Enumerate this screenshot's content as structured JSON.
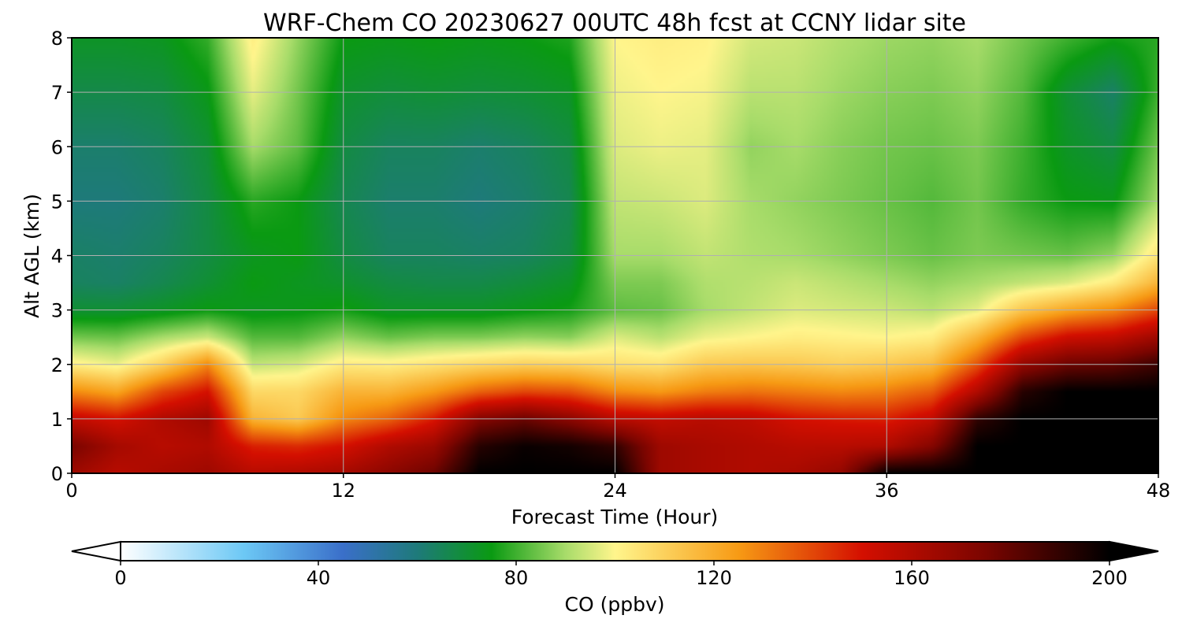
{
  "chart_data": {
    "type": "heatmap",
    "title": "WRF-Chem CO  20230627 00UTC 48h fcst at CCNY lidar site",
    "xlabel": "Forecast Time (Hour)",
    "ylabel": "Alt AGL (km)",
    "xlim": [
      0,
      48
    ],
    "ylim": [
      0,
      8
    ],
    "xticks": [
      0,
      12,
      24,
      36,
      48
    ],
    "yticks": [
      0,
      1,
      2,
      3,
      4,
      5,
      6,
      7,
      8
    ],
    "grid": true,
    "colorbar": {
      "label": "CO  (ppbv)",
      "range": [
        0,
        200
      ],
      "ticks": [
        0,
        40,
        80,
        120,
        160,
        200
      ],
      "extend": "both",
      "colors": {
        "0": "#ffffff",
        "25": "#6cc8f5",
        "45": "#3a6fc9",
        "60": "#1e7a7a",
        "75": "#0a9a12",
        "90": "#a8dc6a",
        "100": "#fff58c",
        "125": "#f79a14",
        "150": "#d40f00",
        "175": "#7a0500",
        "200": "#000000"
      }
    },
    "x_hours": [
      0,
      2,
      4,
      6,
      8,
      10,
      12,
      14,
      16,
      18,
      20,
      22,
      24,
      26,
      28,
      30,
      32,
      34,
      36,
      38,
      40,
      42,
      44,
      46,
      48
    ],
    "y_km": [
      0,
      0.5,
      1,
      1.5,
      2,
      2.5,
      3,
      3.5,
      4,
      5,
      6,
      7,
      8
    ],
    "co_ppbv": [
      [
        165,
        175,
        155,
        128,
        102,
        85,
        70,
        64,
        63,
        60,
        62,
        67,
        72
      ],
      [
        158,
        163,
        150,
        122,
        98,
        84,
        70,
        63,
        62,
        60,
        62,
        67,
        72
      ],
      [
        162,
        158,
        160,
        140,
        110,
        90,
        72,
        66,
        64,
        62,
        64,
        68,
        73
      ],
      [
        165,
        160,
        165,
        150,
        128,
        94,
        75,
        70,
        68,
        68,
        70,
        74,
        79
      ],
      [
        158,
        147,
        118,
        108,
        93,
        82,
        73,
        75,
        73,
        78,
        90,
        97,
        102
      ],
      [
        160,
        145,
        112,
        108,
        95,
        82,
        74,
        73,
        75,
        75,
        83,
        85,
        88
      ],
      [
        163,
        150,
        128,
        118,
        103,
        88,
        76,
        71,
        68,
        66,
        68,
        71,
        75
      ],
      [
        170,
        160,
        135,
        118,
        102,
        84,
        72,
        68,
        64,
        62,
        64,
        69,
        74
      ],
      [
        178,
        166,
        148,
        125,
        105,
        86,
        72,
        67,
        64,
        62,
        64,
        70,
        75
      ],
      [
        200,
        192,
        172,
        135,
        108,
        86,
        72,
        67,
        63,
        60,
        62,
        69,
        74
      ],
      [
        200,
        198,
        178,
        140,
        110,
        88,
        74,
        69,
        64,
        62,
        64,
        70,
        75
      ],
      [
        200,
        196,
        170,
        138,
        109,
        87,
        76,
        72,
        68,
        66,
        68,
        72,
        77
      ],
      [
        200,
        190,
        158,
        128,
        106,
        96,
        83,
        86,
        90,
        93,
        96,
        98,
        100
      ],
      [
        165,
        165,
        155,
        125,
        105,
        92,
        84,
        86,
        90,
        94,
        98,
        100,
        102
      ],
      [
        162,
        162,
        158,
        130,
        112,
        98,
        90,
        91,
        93,
        96,
        97,
        99,
        101
      ],
      [
        160,
        160,
        156,
        132,
        113,
        100,
        93,
        92,
        91,
        90,
        88,
        92,
        95
      ],
      [
        162,
        158,
        150,
        130,
        112,
        102,
        96,
        94,
        90,
        88,
        90,
        92,
        94
      ],
      [
        168,
        158,
        148,
        128,
        110,
        101,
        95,
        92,
        88,
        86,
        87,
        89,
        91
      ],
      [
        200,
        160,
        147,
        130,
        112,
        100,
        94,
        90,
        86,
        84,
        85,
        87,
        89
      ],
      [
        200,
        172,
        155,
        136,
        116,
        102,
        92,
        88,
        84,
        82,
        84,
        86,
        88
      ],
      [
        200,
        200,
        190,
        160,
        138,
        118,
        97,
        90,
        86,
        85,
        86,
        88,
        90
      ],
      [
        200,
        200,
        200,
        192,
        168,
        140,
        113,
        93,
        85,
        79,
        80,
        82,
        85
      ],
      [
        200,
        200,
        200,
        200,
        178,
        152,
        122,
        96,
        84,
        75,
        72,
        70,
        80
      ],
      [
        200,
        200,
        200,
        200,
        180,
        155,
        128,
        103,
        88,
        74,
        68,
        63,
        76
      ],
      [
        200,
        200,
        200,
        200,
        188,
        165,
        140,
        118,
        105,
        90,
        85,
        80,
        78
      ]
    ]
  }
}
